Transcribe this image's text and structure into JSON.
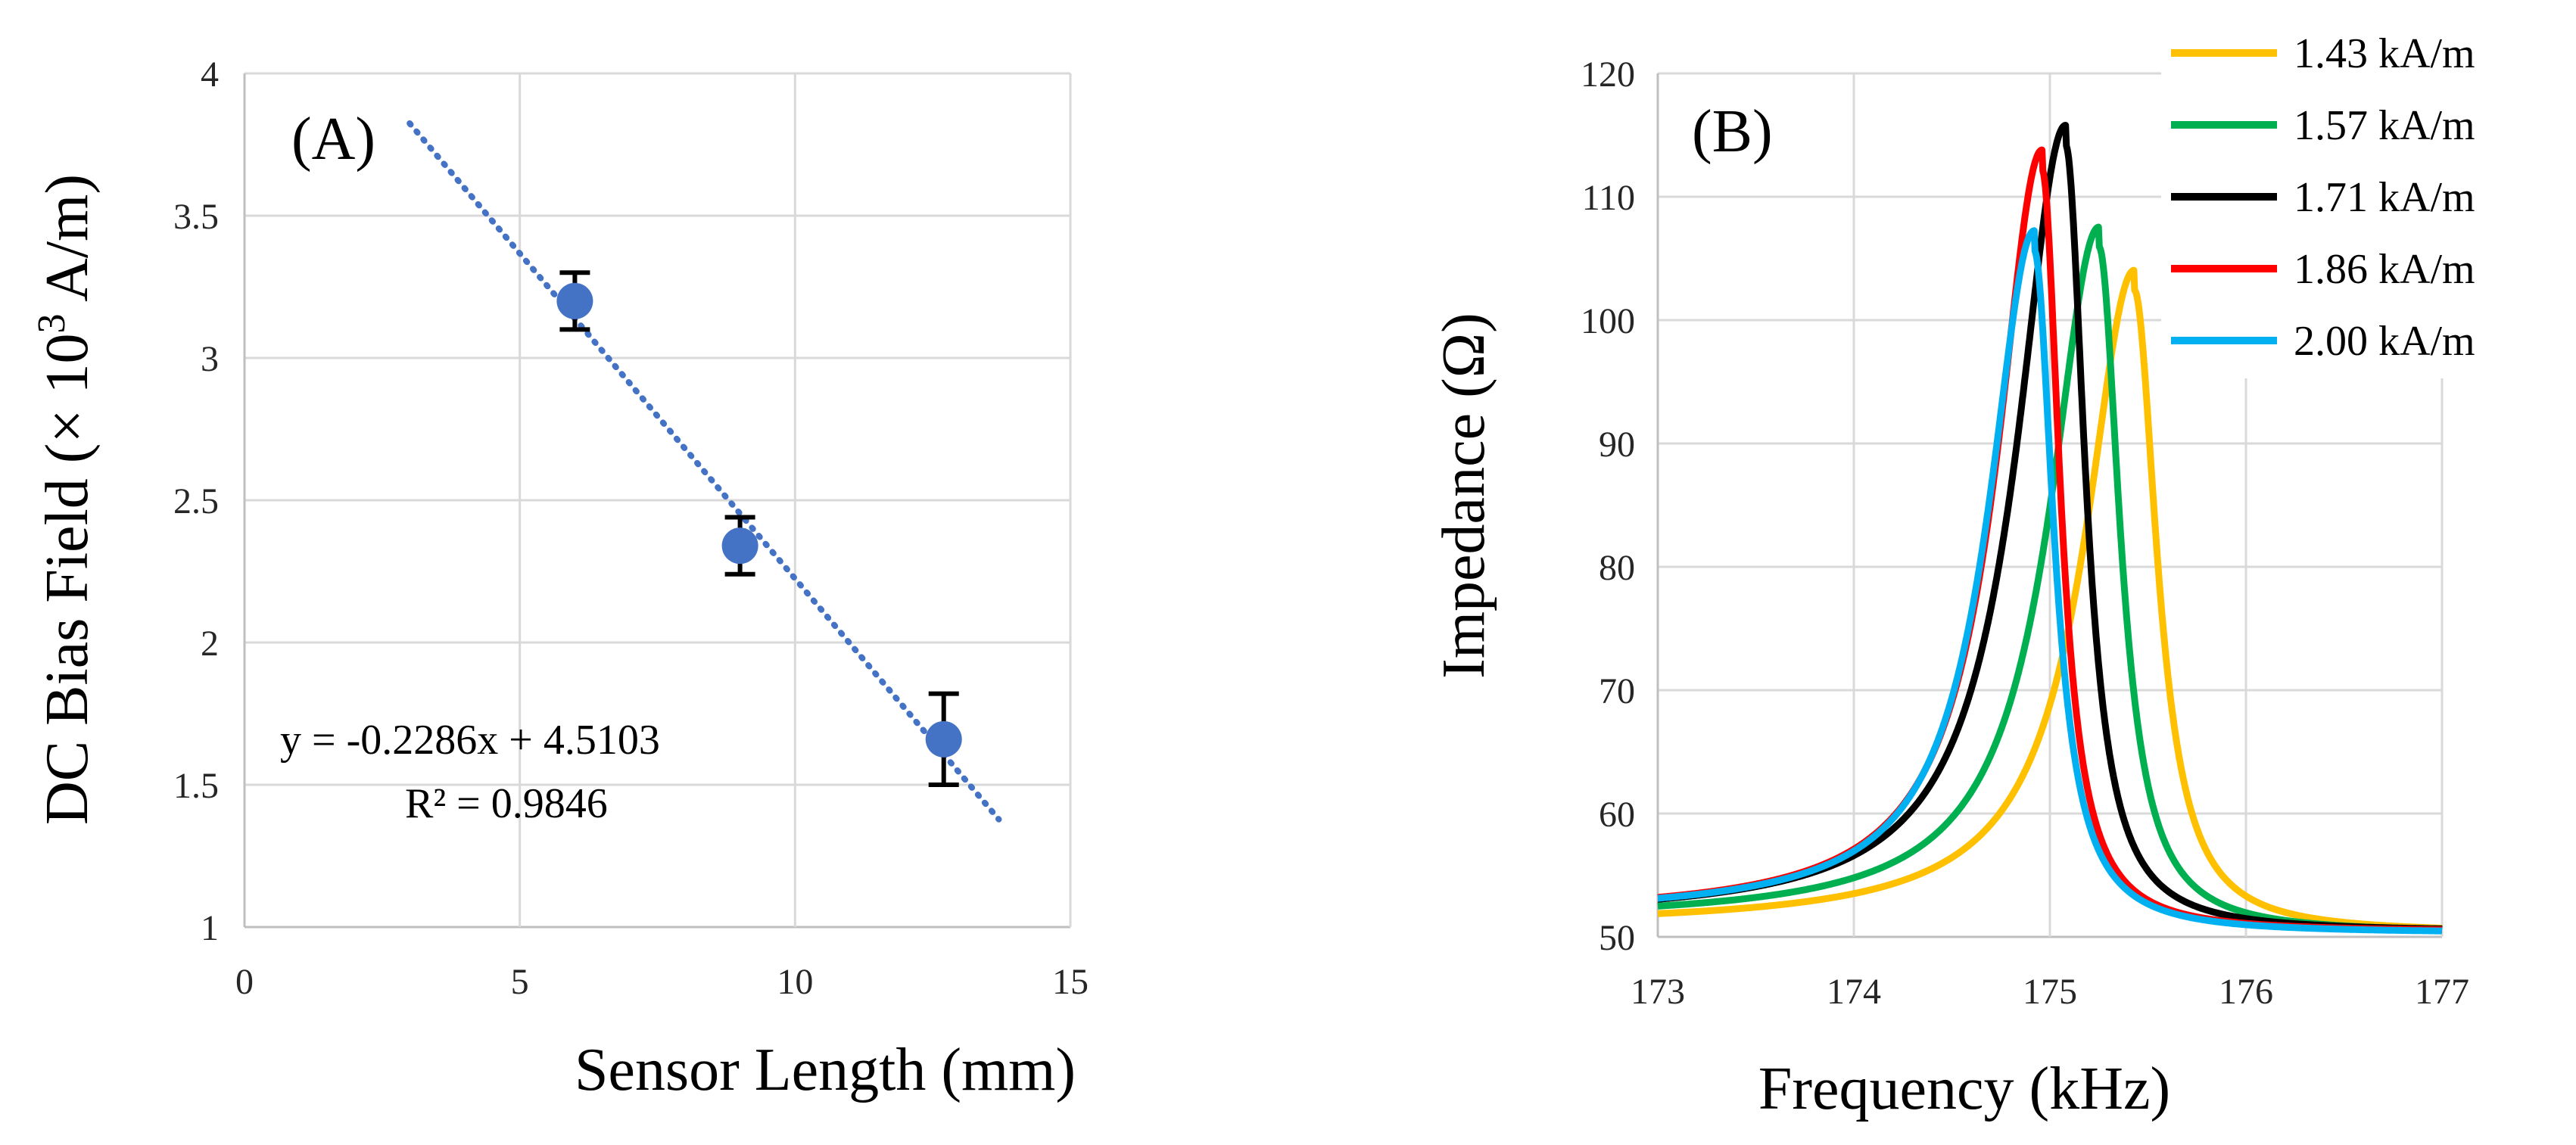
{
  "chart_data": [
    {
      "type": "scatter",
      "panel_label": "(A)",
      "title": "",
      "xlabel": "Sensor Length (mm)",
      "ylabel_main": "DC Bias Field (× 10",
      "ylabel_sup": "3",
      "ylabel_tail": " A/m)",
      "xlim": [
        0,
        15
      ],
      "ylim": [
        1,
        4
      ],
      "xticks": [
        0,
        5,
        10,
        15
      ],
      "yticks": [
        1,
        1.5,
        2,
        2.5,
        3,
        3.5,
        4
      ],
      "xtick_labels": [
        "0",
        "5",
        "10",
        "15"
      ],
      "ytick_labels": [
        "1",
        "1.5",
        "2",
        "2.5",
        "3",
        "3.5",
        "4"
      ],
      "marker_color": "#4472c4",
      "points": [
        {
          "x": 6.0,
          "y": 3.2,
          "err": 0.1
        },
        {
          "x": 9.0,
          "y": 2.34,
          "err": 0.1
        },
        {
          "x": 12.7,
          "y": 1.66,
          "err": 0.16
        }
      ],
      "trendline": {
        "slope": -0.2286,
        "intercept": 4.5103,
        "x_start": 3.0,
        "x_end": 13.7,
        "color": "#4472c4",
        "style": "dotted"
      },
      "equation": "y = -0.2286x + 4.5103",
      "r_squared": "R² = 0.9846",
      "grid": true
    },
    {
      "type": "line",
      "panel_label": "(B)",
      "title": "",
      "xlabel": "Frequency (kHz)",
      "ylabel": "Impedance (Ω)",
      "xlim": [
        173,
        177
      ],
      "ylim": [
        50,
        120
      ],
      "xticks": [
        173,
        174,
        175,
        176,
        177
      ],
      "yticks": [
        50,
        60,
        70,
        80,
        90,
        100,
        110,
        120
      ],
      "xtick_labels": [
        "173",
        "174",
        "175",
        "176",
        "177"
      ],
      "ytick_labels": [
        "50",
        "60",
        "70",
        "80",
        "90",
        "100",
        "110",
        "120"
      ],
      "legend_position": "top-right",
      "grid": true,
      "series": [
        {
          "name": "1.43 kA/m",
          "color": "#ffc000",
          "f0": 175.43,
          "peak": 102.8,
          "base_high": 51.0,
          "base_low": 50.3,
          "gamma_left": 0.3,
          "gamma_right": 0.14
        },
        {
          "name": "1.57 kA/m",
          "color": "#00b050",
          "f0": 175.25,
          "peak": 106.5,
          "base_high": 51.4,
          "base_low": 50.3,
          "gamma_left": 0.3,
          "gamma_right": 0.13
        },
        {
          "name": "1.71 kA/m",
          "color": "#000000",
          "f0": 175.08,
          "peak": 114.8,
          "base_high": 51.6,
          "base_low": 50.4,
          "gamma_left": 0.3,
          "gamma_right": 0.12
        },
        {
          "name": "1.86 kA/m",
          "color": "#ff0000",
          "f0": 174.96,
          "peak": 112.9,
          "base_high": 51.8,
          "base_low": 50.4,
          "gamma_left": 0.28,
          "gamma_right": 0.11
        },
        {
          "name": "2.00 kA/m",
          "color": "#00b0f0",
          "f0": 174.92,
          "peak": 106.4,
          "base_high": 51.8,
          "base_low": 50.3,
          "gamma_left": 0.28,
          "gamma_right": 0.12
        }
      ]
    }
  ]
}
